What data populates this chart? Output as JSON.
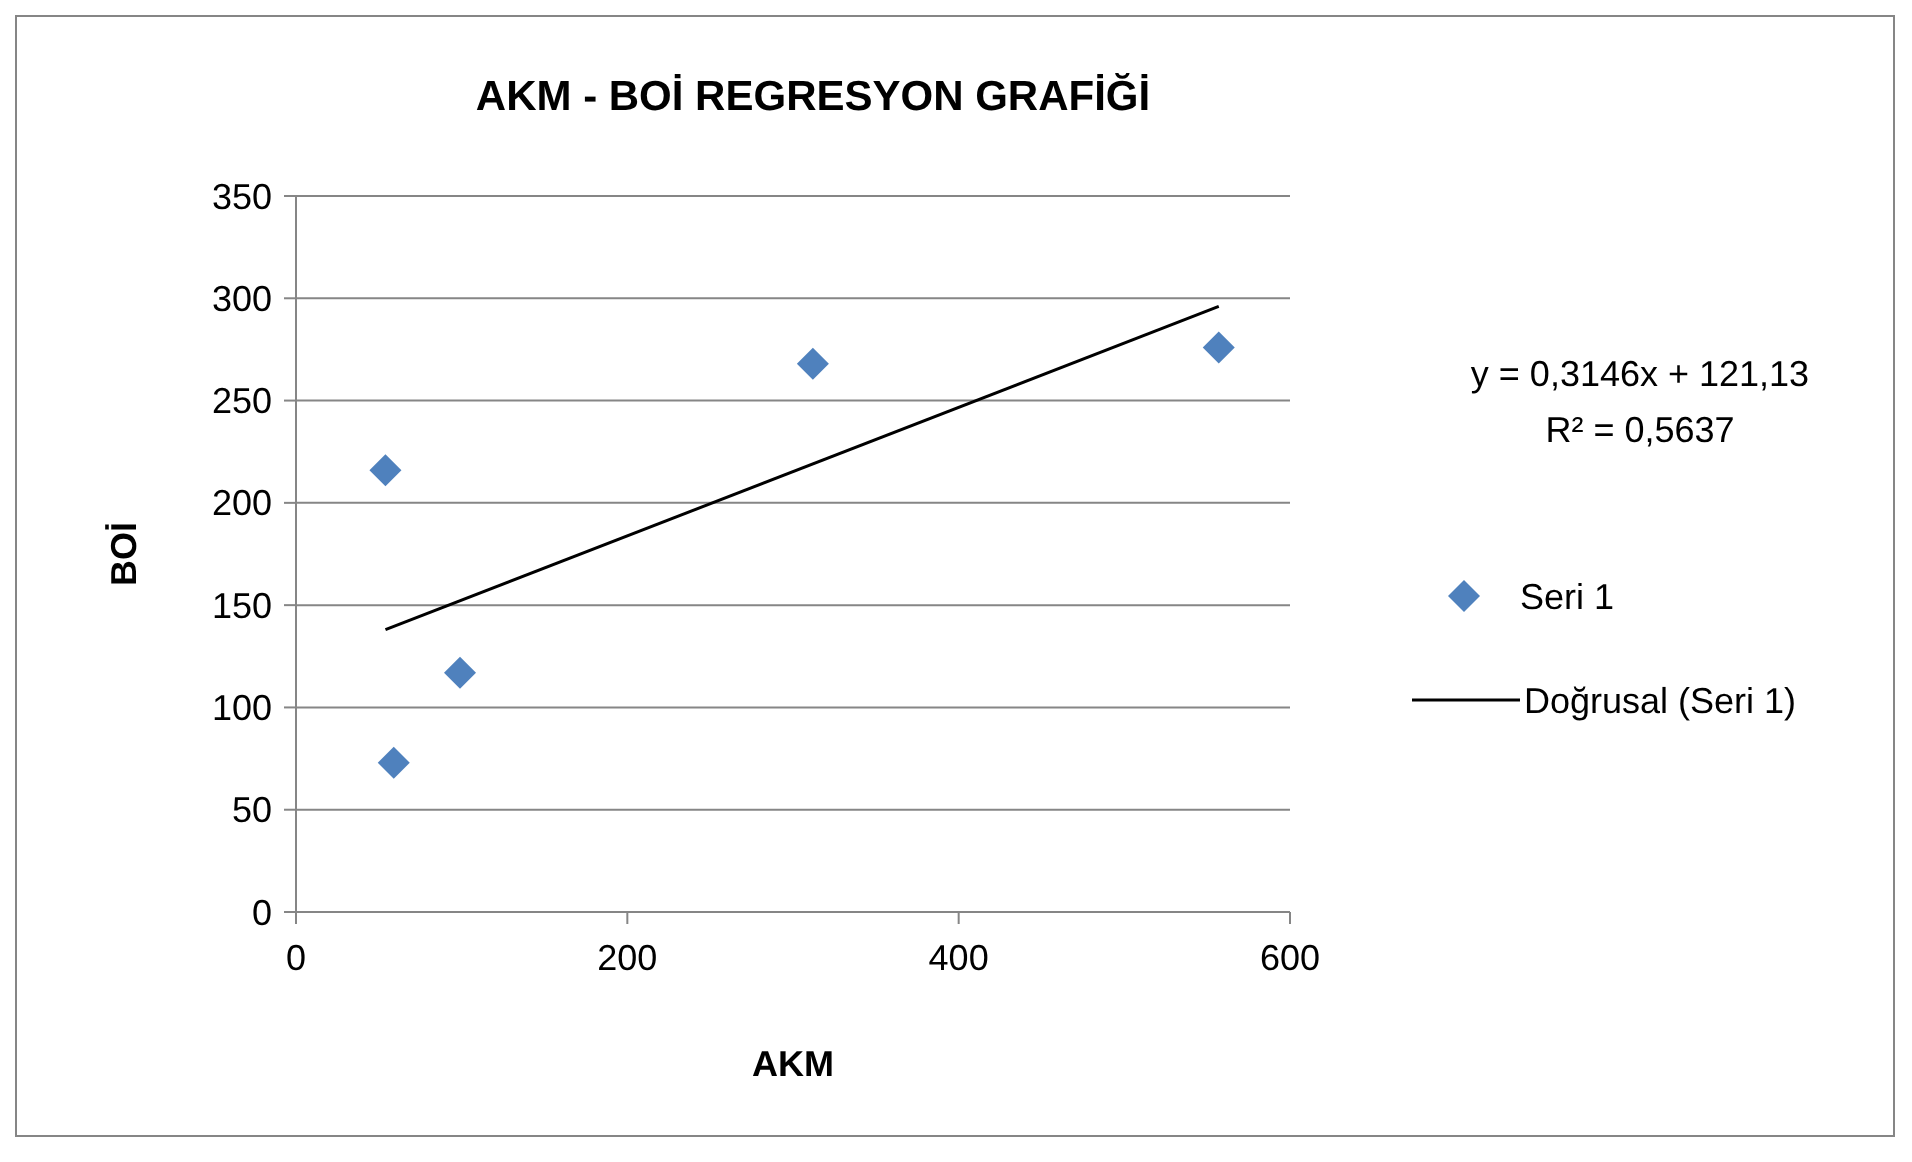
{
  "chart_data": {
    "type": "scatter",
    "title": "AKM - BOİ REGRESYON GRAFİĞİ",
    "xlabel": "AKM",
    "ylabel": "BOİ",
    "xlim": [
      0,
      600
    ],
    "xticks": [
      0,
      200,
      400,
      600
    ],
    "ylim": [
      0,
      350
    ],
    "yticks": [
      0,
      50,
      100,
      150,
      200,
      250,
      300,
      350
    ],
    "grid": "y",
    "legend": "right",
    "annotations": [
      "y = 0,3146x + 121,13",
      "R² = 0,5637"
    ],
    "series": [
      {
        "name": "Seri 1",
        "marker": "diamond",
        "color": "#4f81bd",
        "x": [
          54,
          59,
          99,
          312,
          557
        ],
        "values": [
          216,
          73,
          117,
          268,
          276
        ]
      },
      {
        "name": "Doğrusal (Seri 1)",
        "type": "line",
        "color": "#000000",
        "line_style": "solid",
        "x": [
          54,
          557
        ],
        "values": [
          138,
          296
        ]
      }
    ]
  }
}
